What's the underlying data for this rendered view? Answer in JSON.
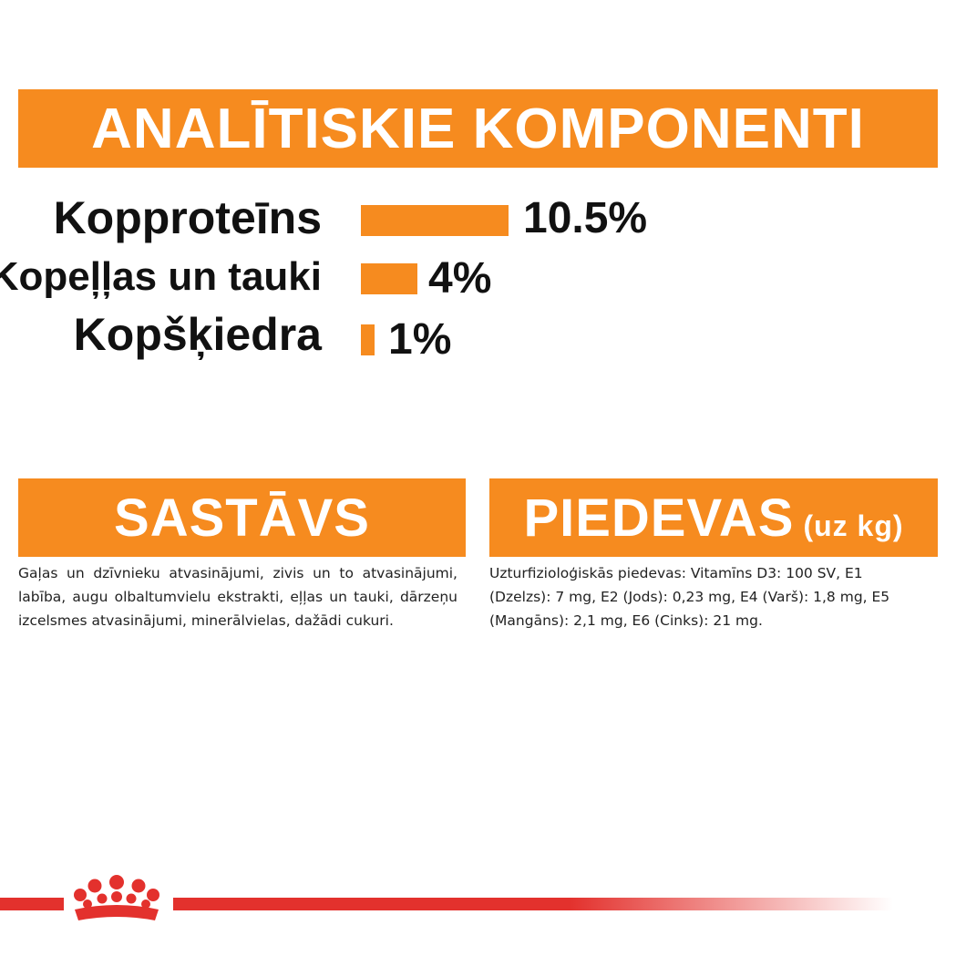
{
  "header": {
    "title": "ANALĪTISKIE KOMPONENTI"
  },
  "components": [
    {
      "label": "Kopproteīns",
      "value": "10.5%",
      "amount": 10.5
    },
    {
      "label": "Kopeļļas un tauki",
      "value": "4%",
      "amount": 4
    },
    {
      "label": "Kopšķiedra",
      "value": "1%",
      "amount": 1
    }
  ],
  "composition": {
    "title": "SASTĀVS",
    "text": "Gaļas un dzīvnieku atvasinājumi, zivis un to atvasinājumi, labība, augu olbaltumvielu ekstrakti, eļļas un tauki, dārzeņu izcelsmes atvasinājumi, minerālvielas, dažādi cukuri."
  },
  "additives": {
    "title": "PIEDEVAS",
    "subtitle": "(uz kg)",
    "text": "Uzturfizioloģiskās piedevas: Vitamīns D3: 100 SV, E1 (Dzelzs): 7 mg, E2 (Jods): 0,23 mg, E4 (Varš): 1,8 mg, E5 (Mangāns): 2,1 mg, E6 (Cinks): 21 mg."
  },
  "colors": {
    "accent": "#f68b1f",
    "brand_red": "#e3312d"
  },
  "icons": {
    "logo": "crown-icon"
  }
}
